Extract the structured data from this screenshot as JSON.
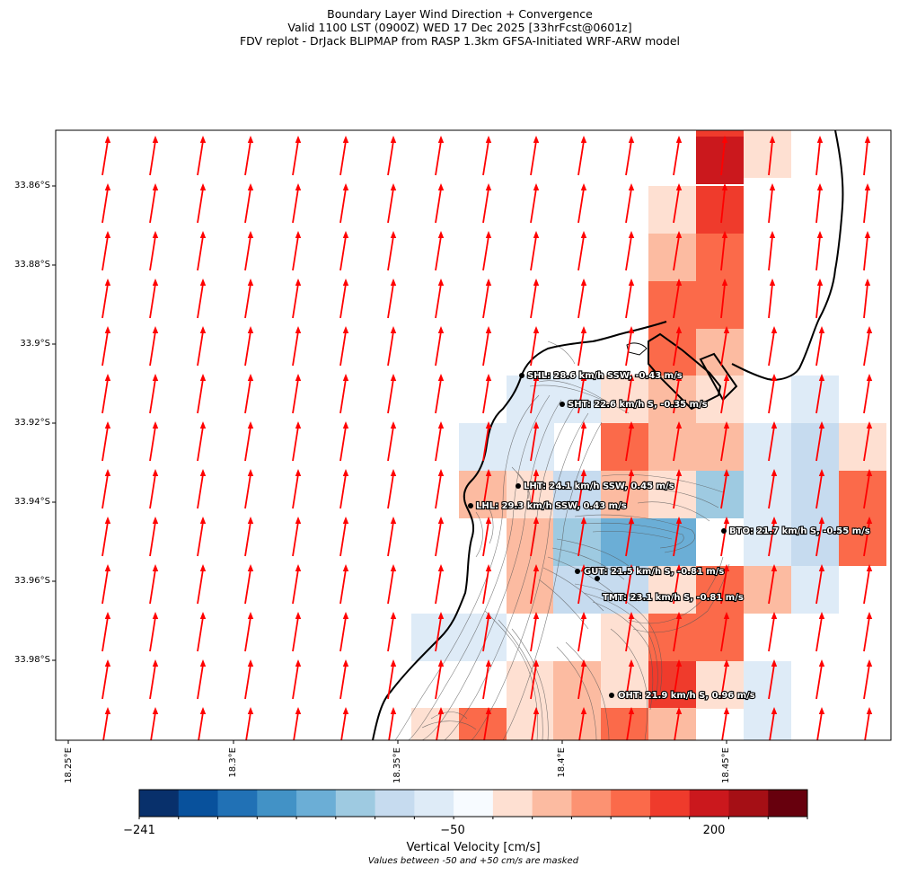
{
  "title": {
    "line1": "Boundary Layer Wind Direction + Convergence",
    "line2": "Valid 1100 LST (0900Z) WED 17 Dec 2025 [33hrFcst@0601z]",
    "line3": "FDV replot - DrJack BLIPMAP from RASP 1.3km GFSA-Initiated WRF-ARW model"
  },
  "axes": {
    "lat_ticks": [
      "33.86°S",
      "33.88°S",
      "33.9°S",
      "33.92°S",
      "33.94°S",
      "33.96°S",
      "33.98°S"
    ],
    "lon_ticks": [
      "18.25°E",
      "18.3°E",
      "18.35°E",
      "18.4°E",
      "18.45°E"
    ]
  },
  "stations": [
    {
      "label": "SHL: 28.6 km/h SSW, -0.43 m/s"
    },
    {
      "label": "SHT: 22.6 km/h S, -0.35 m/s"
    },
    {
      "label": "LHT: 24.1 km/h SSW, 0.45 m/s"
    },
    {
      "label": "LHL: 29.3 km/h SSW, 0.43 m/s"
    },
    {
      "label": "BTO: 21.7 km/h S, -0.55 m/s"
    },
    {
      "label": "GUT: 21.5 km/h S, -0.81 m/s"
    },
    {
      "label": "TMT: 23.1 km/h S, -0.81 m/s"
    },
    {
      "label": "OHT: 21.9 km/h S, 0.96 m/s"
    }
  ],
  "colorbar": {
    "ticks": [
      "−241",
      "−50",
      "200"
    ],
    "label": "Vertical Velocity [cm/s]",
    "note": "Values between -50 and +50 cm/s are masked",
    "colors": [
      "#08306b",
      "#08519c",
      "#2171b5",
      "#4292c6",
      "#6baed6",
      "#9ecae1",
      "#c6dbef",
      "#deebf7",
      "#f7fbff",
      "#fee0d2",
      "#fcbba1",
      "#fc9272",
      "#fb6a4a",
      "#ef3b2c",
      "#cb181d",
      "#a50f15",
      "#67000d"
    ]
  },
  "colors": {
    "wind_arrow": "#ff0000",
    "coastline": "#000000",
    "terrain_contour": "#555555"
  }
}
